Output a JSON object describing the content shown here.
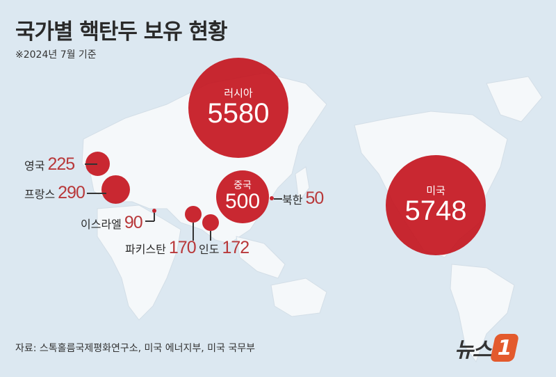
{
  "header": {
    "title": "국가별 핵탄두 보유 현황",
    "subtitle": "※2024년 7월 기준"
  },
  "countries": {
    "russia": {
      "name": "러시아",
      "value": "5580"
    },
    "usa": {
      "name": "미국",
      "value": "5748"
    },
    "china": {
      "name": "중국",
      "value": "500"
    },
    "uk": {
      "name": "영국",
      "value": "225"
    },
    "france": {
      "name": "프랑스",
      "value": "290"
    },
    "israel": {
      "name": "이스라엘",
      "value": "90"
    },
    "pakistan": {
      "name": "파키스탄",
      "value": "170"
    },
    "india": {
      "name": "인도",
      "value": "172"
    },
    "north_korea": {
      "name": "북한",
      "value": "50"
    }
  },
  "colors": {
    "bubble": "#c41620",
    "value_text": "#b8383a",
    "sea": "#dce8f1",
    "land": "#f5f8fa",
    "logo": "#e35a2d"
  },
  "footer": {
    "source": "자료: 스톡홀름국제평화연구소, 미국 에너지부, 미국 국무부",
    "logo_text": "뉴스",
    "logo_mark": "1"
  }
}
